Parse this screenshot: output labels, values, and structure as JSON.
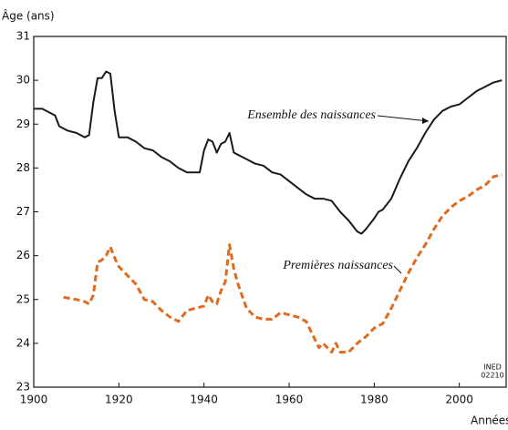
{
  "chart_data": {
    "type": "line",
    "y_label": "Âge (ans)",
    "x_label": "Années",
    "source": [
      "INED",
      "02210"
    ],
    "annotations": [
      "Ensemble des naissances",
      "Premières naissances"
    ],
    "xlim": [
      1900,
      2011
    ],
    "ylim": [
      23,
      31
    ],
    "xticks": [
      1900,
      1920,
      1940,
      1960,
      1980,
      2000
    ],
    "yticks": [
      23,
      24,
      25,
      26,
      27,
      28,
      29,
      30,
      31
    ],
    "series": [
      {
        "name": "Ensemble des naissances",
        "color": "#1a1a1a",
        "dash": false,
        "x": [
          1900,
          1902,
          1904,
          1905,
          1906,
          1908,
          1910,
          1912,
          1913,
          1914,
          1915,
          1916,
          1917,
          1918,
          1919,
          1920,
          1922,
          1924,
          1926,
          1928,
          1930,
          1932,
          1934,
          1936,
          1938,
          1939,
          1940,
          1941,
          1942,
          1943,
          1944,
          1945,
          1946,
          1947,
          1948,
          1950,
          1952,
          1954,
          1956,
          1958,
          1960,
          1962,
          1964,
          1966,
          1968,
          1970,
          1972,
          1974,
          1976,
          1977,
          1978,
          1980,
          1981,
          1982,
          1984,
          1986,
          1988,
          1990,
          1992,
          1994,
          1996,
          1998,
          2000,
          2002,
          2004,
          2006,
          2008,
          2010
        ],
        "values": [
          29.35,
          29.35,
          29.25,
          29.2,
          28.95,
          28.85,
          28.8,
          28.7,
          28.75,
          29.5,
          30.05,
          30.05,
          30.2,
          30.15,
          29.3,
          28.7,
          28.7,
          28.6,
          28.45,
          28.4,
          28.25,
          28.15,
          28.0,
          27.9,
          27.9,
          27.9,
          28.4,
          28.65,
          28.6,
          28.35,
          28.55,
          28.6,
          28.8,
          28.35,
          28.3,
          28.2,
          28.1,
          28.05,
          27.9,
          27.85,
          27.7,
          27.55,
          27.4,
          27.3,
          27.3,
          27.25,
          27.0,
          26.8,
          26.55,
          26.5,
          26.6,
          26.85,
          27.0,
          27.05,
          27.3,
          27.75,
          28.15,
          28.45,
          28.8,
          29.1,
          29.3,
          29.4,
          29.45,
          29.6,
          29.75,
          29.85,
          29.95,
          30.0
        ]
      },
      {
        "name": "Premières naissances",
        "color": "#e06a1e",
        "dash": true,
        "x": [
          1907,
          1910,
          1912,
          1913,
          1914,
          1915,
          1916,
          1917,
          1918,
          1919,
          1920,
          1922,
          1924,
          1926,
          1928,
          1930,
          1932,
          1934,
          1936,
          1938,
          1940,
          1941,
          1942,
          1943,
          1944,
          1945,
          1946,
          1947,
          1948,
          1950,
          1952,
          1954,
          1956,
          1958,
          1960,
          1962,
          1964,
          1966,
          1967,
          1968,
          1969,
          1970,
          1971,
          1972,
          1974,
          1976,
          1978,
          1980,
          1982,
          1984,
          1986,
          1988,
          1990,
          1992,
          1994,
          1996,
          1998,
          2000,
          2002,
          2004,
          2006,
          2008,
          2010
        ],
        "values": [
          25.05,
          25.0,
          24.95,
          24.9,
          25.1,
          25.85,
          25.9,
          26.0,
          26.2,
          25.95,
          25.75,
          25.55,
          25.35,
          25.0,
          24.95,
          24.75,
          24.6,
          24.5,
          24.75,
          24.8,
          24.85,
          25.1,
          24.95,
          24.9,
          25.2,
          25.4,
          26.25,
          25.7,
          25.35,
          24.8,
          24.6,
          24.55,
          24.55,
          24.7,
          24.65,
          24.6,
          24.5,
          24.1,
          23.9,
          24.0,
          23.9,
          23.8,
          24.0,
          23.8,
          23.8,
          24.0,
          24.15,
          24.35,
          24.45,
          24.8,
          25.2,
          25.6,
          25.95,
          26.25,
          26.6,
          26.9,
          27.1,
          27.25,
          27.35,
          27.5,
          27.6,
          27.8,
          27.85
        ]
      }
    ]
  }
}
